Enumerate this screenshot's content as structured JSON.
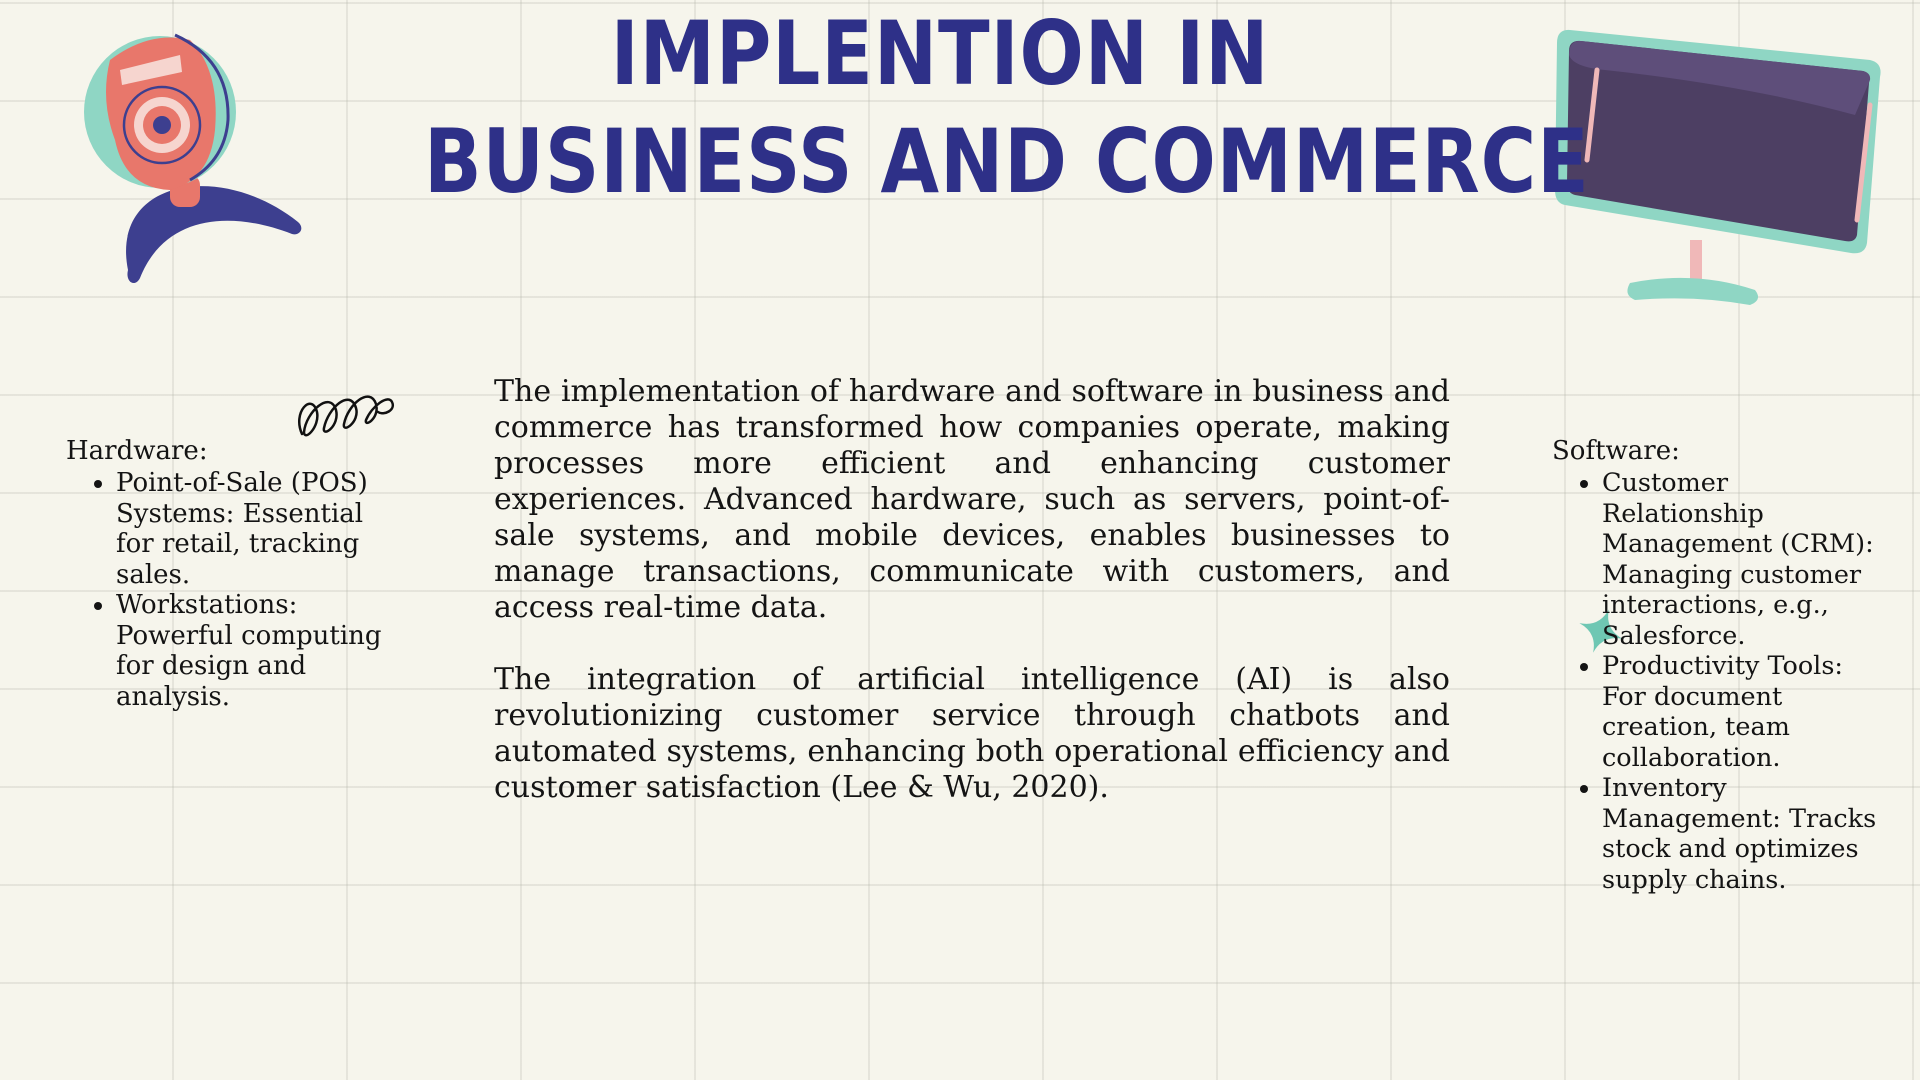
{
  "title": {
    "line1": "Implention in",
    "line2": "business and commerce"
  },
  "hardware": {
    "heading": "Hardware:",
    "items": [
      "Point-of-Sale (POS) Systems: Essential for retail, tracking sales.",
      "Workstations: Powerful computing for design and analysis."
    ]
  },
  "body": {
    "paragraph1": "The implementation of hardware and software in business and commerce has transformed how companies operate, making processes more efficient and enhancing customer experiences. Advanced hardware, such as servers, point-of-sale systems, and mobile devices, enables businesses to manage transactions, communicate with customers, and access real-time data.",
    "paragraph2": "The integration of artificial intelligence (AI) is also revolutionizing customer service through chatbots and automated systems, enhancing both operational efficiency and customer satisfaction (Lee & Wu, 2020)."
  },
  "software": {
    "heading": "Software:",
    "items": [
      "Customer Relationship Management (CRM): Managing customer interactions, e.g., Salesforce.",
      "Productivity Tools: For document creation, team collaboration.",
      "Inventory Management: Tracks stock and optimizes supply chains."
    ]
  },
  "icons": {
    "left": "webcam-icon",
    "right": "monitor-icon",
    "squiggle": "squiggle-icon",
    "sparkle": "sparkle-icon"
  },
  "colors": {
    "title": "#2e3088",
    "background": "#f6f5ec",
    "coral": "#e8776b",
    "teal": "#8fd6c4",
    "navy": "#3d3f8f",
    "purple": "#4d3f63"
  }
}
